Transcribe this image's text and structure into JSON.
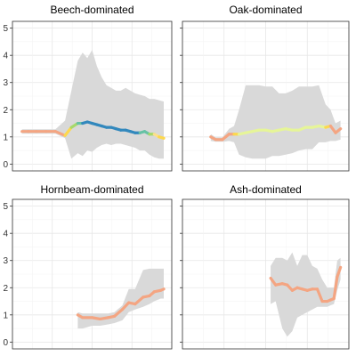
{
  "chart_data": [
    {
      "type": "line",
      "title": "Beech-dominated",
      "ylim": [
        0,
        5
      ],
      "yticks": [
        0,
        1,
        2,
        3,
        4,
        5
      ],
      "xlim": [
        0,
        1
      ],
      "grid": true,
      "band_color": "#d9d9d9",
      "points": [
        {
          "x": 0.06,
          "y": 1.2,
          "lo": 1.12,
          "hi": 1.28,
          "c": "#f4a582"
        },
        {
          "x": 0.1,
          "y": 1.2,
          "lo": 1.12,
          "hi": 1.28,
          "c": "#f4a582"
        },
        {
          "x": 0.15,
          "y": 1.2,
          "lo": 1.12,
          "hi": 1.28,
          "c": "#f4a582"
        },
        {
          "x": 0.21,
          "y": 1.2,
          "lo": 1.12,
          "hi": 1.28,
          "c": "#f4a582"
        },
        {
          "x": 0.27,
          "y": 1.2,
          "lo": 1.12,
          "hi": 1.28,
          "c": "#f4a582"
        },
        {
          "x": 0.33,
          "y": 1.05,
          "lo": 0.95,
          "hi": 1.6,
          "c": "#f4a582"
        },
        {
          "x": 0.37,
          "y": 1.35,
          "lo": 0.2,
          "hi": 2.7,
          "c": "#fdd84e"
        },
        {
          "x": 0.41,
          "y": 1.5,
          "lo": 0.4,
          "hi": 3.8,
          "c": "#a6d96a"
        },
        {
          "x": 0.44,
          "y": 1.5,
          "lo": 0.3,
          "hi": 4.1,
          "c": "#66c2a5"
        },
        {
          "x": 0.47,
          "y": 1.55,
          "lo": 0.5,
          "hi": 3.9,
          "c": "#3288bd"
        },
        {
          "x": 0.5,
          "y": 1.5,
          "lo": 0.45,
          "hi": 4.2,
          "c": "#3288bd"
        },
        {
          "x": 0.53,
          "y": 1.45,
          "lo": 0.6,
          "hi": 3.6,
          "c": "#3288bd"
        },
        {
          "x": 0.56,
          "y": 1.4,
          "lo": 0.7,
          "hi": 3.2,
          "c": "#3288bd"
        },
        {
          "x": 0.59,
          "y": 1.35,
          "lo": 0.75,
          "hi": 2.9,
          "c": "#3288bd"
        },
        {
          "x": 0.62,
          "y": 1.35,
          "lo": 0.7,
          "hi": 2.8,
          "c": "#3288bd"
        },
        {
          "x": 0.65,
          "y": 1.3,
          "lo": 0.75,
          "hi": 2.7,
          "c": "#3288bd"
        },
        {
          "x": 0.68,
          "y": 1.25,
          "lo": 0.75,
          "hi": 2.7,
          "c": "#3288bd"
        },
        {
          "x": 0.71,
          "y": 1.25,
          "lo": 0.7,
          "hi": 2.8,
          "c": "#3288bd"
        },
        {
          "x": 0.74,
          "y": 1.2,
          "lo": 0.65,
          "hi": 2.7,
          "c": "#3288bd"
        },
        {
          "x": 0.77,
          "y": 1.15,
          "lo": 0.6,
          "hi": 2.6,
          "c": "#3288bd"
        },
        {
          "x": 0.8,
          "y": 1.15,
          "lo": 0.5,
          "hi": 2.55,
          "c": "#3288bd"
        },
        {
          "x": 0.83,
          "y": 1.2,
          "lo": 0.5,
          "hi": 2.5,
          "c": "#66c2a5"
        },
        {
          "x": 0.86,
          "y": 1.1,
          "lo": 0.35,
          "hi": 2.4,
          "c": "#66c2a5"
        },
        {
          "x": 0.89,
          "y": 1.1,
          "lo": 0.25,
          "hi": 2.4,
          "c": "#a6d96a"
        },
        {
          "x": 0.92,
          "y": 1.0,
          "lo": 0.2,
          "hi": 2.35,
          "c": "#fee08b"
        },
        {
          "x": 0.95,
          "y": 0.95,
          "lo": 0.2,
          "hi": 2.3,
          "c": "#fdd84e"
        }
      ]
    },
    {
      "type": "line",
      "title": "Oak-dominated",
      "ylim": [
        0,
        5
      ],
      "yticks": [
        0,
        1,
        2,
        3,
        4,
        5
      ],
      "xlim": [
        0,
        1
      ],
      "grid": true,
      "band_color": "#d9d9d9",
      "points": [
        {
          "x": 0.17,
          "y": 1.0,
          "lo": 0.85,
          "hi": 1.1,
          "c": "#f4a582"
        },
        {
          "x": 0.2,
          "y": 0.9,
          "lo": 0.82,
          "hi": 0.98,
          "c": "#f4a582"
        },
        {
          "x": 0.24,
          "y": 0.9,
          "lo": 0.82,
          "hi": 0.98,
          "c": "#f4a582"
        },
        {
          "x": 0.28,
          "y": 1.1,
          "lo": 0.85,
          "hi": 1.3,
          "c": "#f4a582"
        },
        {
          "x": 0.31,
          "y": 1.1,
          "lo": 0.8,
          "hi": 1.4,
          "c": "#f4a582"
        },
        {
          "x": 0.34,
          "y": 1.1,
          "lo": 0.35,
          "hi": 2.0,
          "c": "#fdd84e"
        },
        {
          "x": 0.38,
          "y": 1.15,
          "lo": 0.25,
          "hi": 2.9,
          "c": "#e6f598"
        },
        {
          "x": 0.42,
          "y": 1.2,
          "lo": 0.2,
          "hi": 2.9,
          "c": "#e6f598"
        },
        {
          "x": 0.46,
          "y": 1.25,
          "lo": 0.2,
          "hi": 2.9,
          "c": "#e6f598"
        },
        {
          "x": 0.5,
          "y": 1.25,
          "lo": 0.2,
          "hi": 2.85,
          "c": "#e6f598"
        },
        {
          "x": 0.54,
          "y": 1.2,
          "lo": 0.3,
          "hi": 2.85,
          "c": "#e6f598"
        },
        {
          "x": 0.58,
          "y": 1.25,
          "lo": 0.3,
          "hi": 2.6,
          "c": "#e6f598"
        },
        {
          "x": 0.62,
          "y": 1.3,
          "lo": 0.35,
          "hi": 2.6,
          "c": "#e6f598"
        },
        {
          "x": 0.66,
          "y": 1.25,
          "lo": 0.4,
          "hi": 2.7,
          "c": "#e6f598"
        },
        {
          "x": 0.7,
          "y": 1.25,
          "lo": 0.5,
          "hi": 2.85,
          "c": "#e6f598"
        },
        {
          "x": 0.74,
          "y": 1.35,
          "lo": 0.55,
          "hi": 2.85,
          "c": "#e6f598"
        },
        {
          "x": 0.78,
          "y": 1.35,
          "lo": 0.55,
          "hi": 2.85,
          "c": "#e6f598"
        },
        {
          "x": 0.82,
          "y": 1.4,
          "lo": 0.8,
          "hi": 2.9,
          "c": "#e6f598"
        },
        {
          "x": 0.86,
          "y": 1.35,
          "lo": 0.8,
          "hi": 2.2,
          "c": "#e6f598"
        },
        {
          "x": 0.89,
          "y": 1.4,
          "lo": 0.85,
          "hi": 2.0,
          "c": "#fdd84e"
        },
        {
          "x": 0.92,
          "y": 1.15,
          "lo": 0.85,
          "hi": 1.5,
          "c": "#f4a582"
        },
        {
          "x": 0.95,
          "y": 1.3,
          "lo": 0.9,
          "hi": 1.6,
          "c": "#f4a582"
        }
      ]
    },
    {
      "type": "line",
      "title": "Hornbeam-dominated",
      "ylim": [
        0,
        5
      ],
      "yticks": [
        0,
        1,
        2,
        3,
        4,
        5
      ],
      "xlim": [
        0,
        1
      ],
      "grid": true,
      "band_color": "#d9d9d9",
      "points": [
        {
          "x": 0.41,
          "y": 1.0,
          "lo": 0.5,
          "hi": 1.1,
          "c": "#f4a582"
        },
        {
          "x": 0.44,
          "y": 0.9,
          "lo": 0.5,
          "hi": 1.05,
          "c": "#f4a582"
        },
        {
          "x": 0.5,
          "y": 0.9,
          "lo": 0.6,
          "hi": 1.05,
          "c": "#f4a582"
        },
        {
          "x": 0.55,
          "y": 0.85,
          "lo": 0.6,
          "hi": 1.05,
          "c": "#f4a582"
        },
        {
          "x": 0.6,
          "y": 0.9,
          "lo": 0.65,
          "hi": 1.05,
          "c": "#f4a582"
        },
        {
          "x": 0.64,
          "y": 0.95,
          "lo": 0.7,
          "hi": 1.1,
          "c": "#f4a582"
        },
        {
          "x": 0.69,
          "y": 1.2,
          "lo": 0.8,
          "hi": 1.35,
          "c": "#f4a582"
        },
        {
          "x": 0.73,
          "y": 1.45,
          "lo": 1.1,
          "hi": 1.95,
          "c": "#f4a582"
        },
        {
          "x": 0.77,
          "y": 1.4,
          "lo": 1.2,
          "hi": 1.95,
          "c": "#f4a582"
        },
        {
          "x": 0.82,
          "y": 1.65,
          "lo": 1.3,
          "hi": 2.65,
          "c": "#f4a582"
        },
        {
          "x": 0.86,
          "y": 1.7,
          "lo": 1.4,
          "hi": 2.7,
          "c": "#f4a582"
        },
        {
          "x": 0.89,
          "y": 1.85,
          "lo": 1.5,
          "hi": 2.7,
          "c": "#f4a582"
        },
        {
          "x": 0.93,
          "y": 1.9,
          "lo": 1.6,
          "hi": 2.7,
          "c": "#f4a582"
        },
        {
          "x": 0.95,
          "y": 1.95,
          "lo": 1.6,
          "hi": 2.7,
          "c": "#f4a582"
        }
      ]
    },
    {
      "type": "line",
      "title": "Ash-dominated",
      "ylim": [
        0,
        5
      ],
      "yticks": [
        0,
        1,
        2,
        3,
        4,
        5
      ],
      "xlim": [
        0,
        1
      ],
      "grid": true,
      "band_color": "#d9d9d9",
      "points": [
        {
          "x": 0.53,
          "y": 2.35,
          "lo": 1.4,
          "hi": 2.8,
          "c": "#f4a582"
        },
        {
          "x": 0.56,
          "y": 2.1,
          "lo": 1.5,
          "hi": 3.1,
          "c": "#f4a582"
        },
        {
          "x": 0.6,
          "y": 2.15,
          "lo": 0.5,
          "hi": 3.1,
          "c": "#f4a582"
        },
        {
          "x": 0.63,
          "y": 2.1,
          "lo": 0.2,
          "hi": 3.0,
          "c": "#f4a582"
        },
        {
          "x": 0.66,
          "y": 1.9,
          "lo": 0.4,
          "hi": 3.3,
          "c": "#f4a582"
        },
        {
          "x": 0.69,
          "y": 2.0,
          "lo": 0.9,
          "hi": 2.8,
          "c": "#f4a582"
        },
        {
          "x": 0.72,
          "y": 1.95,
          "lo": 1.0,
          "hi": 3.2,
          "c": "#f4a582"
        },
        {
          "x": 0.75,
          "y": 1.9,
          "lo": 1.1,
          "hi": 3.2,
          "c": "#f4a582"
        },
        {
          "x": 0.78,
          "y": 1.95,
          "lo": 1.2,
          "hi": 2.8,
          "c": "#f4a582"
        },
        {
          "x": 0.81,
          "y": 1.95,
          "lo": 1.3,
          "hi": 2.7,
          "c": "#f4a582"
        },
        {
          "x": 0.84,
          "y": 1.5,
          "lo": 1.3,
          "hi": 2.3,
          "c": "#f4a582"
        },
        {
          "x": 0.87,
          "y": 1.5,
          "lo": 1.3,
          "hi": 2.0,
          "c": "#f4a582"
        },
        {
          "x": 0.89,
          "y": 1.55,
          "lo": 1.35,
          "hi": 2.0,
          "c": "#f4a582"
        },
        {
          "x": 0.91,
          "y": 1.6,
          "lo": 1.4,
          "hi": 2.0,
          "c": "#f4a582"
        },
        {
          "x": 0.93,
          "y": 2.4,
          "lo": 1.9,
          "hi": 3.0,
          "c": "#f4a582"
        },
        {
          "x": 0.95,
          "y": 2.75,
          "lo": 2.3,
          "hi": 3.1,
          "c": "#f4a582"
        }
      ]
    }
  ]
}
